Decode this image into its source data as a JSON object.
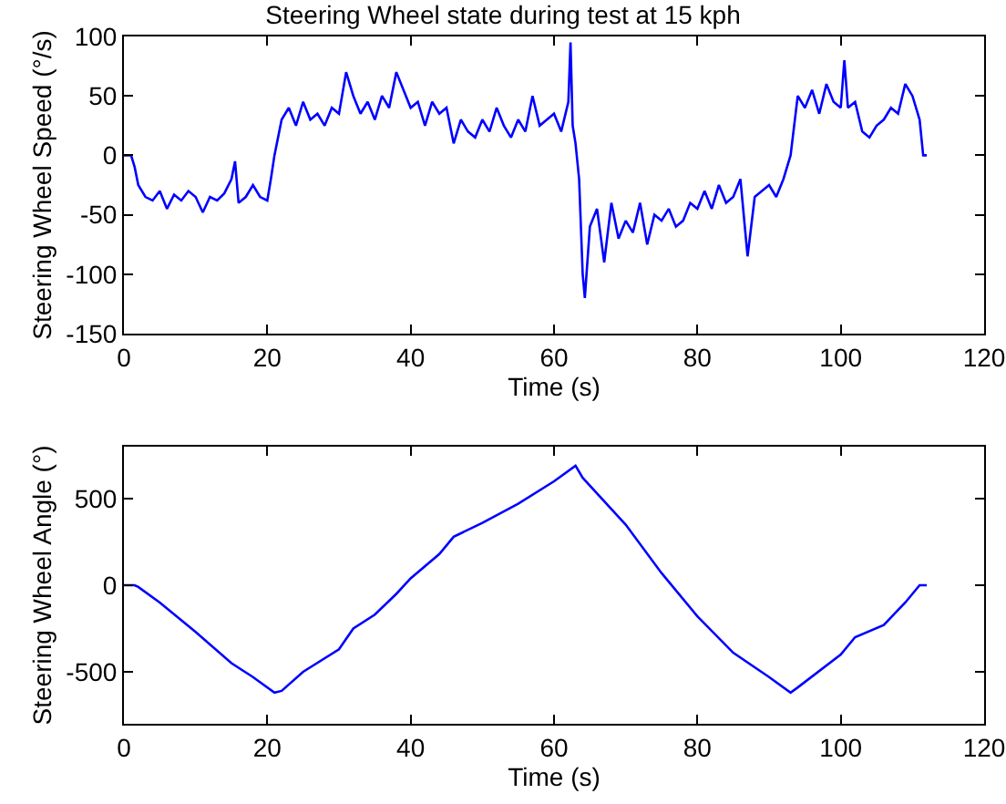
{
  "chart_data": [
    {
      "type": "line",
      "title": "Steering Wheel state during test at 15 kph",
      "xlabel": "Time (s)",
      "ylabel": "Steering Wheel Speed (°/s)",
      "x": [
        0,
        1,
        1.5,
        2,
        3,
        4,
        5,
        6,
        7,
        8,
        9,
        10,
        11,
        12,
        13,
        14,
        15,
        15.5,
        16,
        17,
        18,
        19,
        20,
        20.5,
        21,
        22,
        23,
        24,
        25,
        26,
        27,
        28,
        29,
        30,
        31,
        32,
        33,
        34,
        35,
        36,
        37,
        38,
        39,
        40,
        41,
        42,
        43,
        44,
        45,
        46,
        47,
        48,
        49,
        50,
        51,
        52,
        53,
        54,
        55,
        56,
        57,
        58,
        59,
        60,
        61,
        62,
        62.3,
        62.6,
        63,
        63.5,
        64,
        64.3,
        65,
        66,
        67,
        68,
        69,
        70,
        71,
        72,
        73,
        74,
        75,
        76,
        77,
        78,
        79,
        80,
        81,
        82,
        83,
        84,
        85,
        86,
        87,
        88,
        89,
        90,
        91,
        92,
        93,
        94,
        95,
        96,
        97,
        98,
        99,
        100,
        100.5,
        101,
        102,
        103,
        104,
        105,
        106,
        107,
        108,
        109,
        110,
        111,
        111.5,
        112
      ],
      "series": [
        {
          "color": "#0000ff",
          "values": [
            0,
            0,
            -10,
            -25,
            -35,
            -38,
            -30,
            -45,
            -33,
            -38,
            -30,
            -35,
            -48,
            -35,
            -38,
            -32,
            -20,
            -5,
            -40,
            -35,
            -25,
            -35,
            -38,
            -20,
            0,
            30,
            40,
            25,
            45,
            30,
            35,
            25,
            40,
            35,
            70,
            50,
            35,
            45,
            30,
            50,
            40,
            70,
            55,
            40,
            45,
            25,
            45,
            35,
            40,
            10,
            30,
            20,
            15,
            30,
            20,
            40,
            25,
            15,
            30,
            20,
            50,
            25,
            30,
            35,
            20,
            45,
            95,
            25,
            10,
            -20,
            -100,
            -120,
            -60,
            -45,
            -90,
            -40,
            -70,
            -55,
            -65,
            -40,
            -75,
            -50,
            -55,
            -45,
            -60,
            -55,
            -40,
            -45,
            -30,
            -45,
            -25,
            -40,
            -35,
            -20,
            -85,
            -35,
            -30,
            -25,
            -35,
            -20,
            0,
            50,
            40,
            55,
            35,
            60,
            45,
            40,
            80,
            40,
            45,
            20,
            15,
            25,
            30,
            40,
            35,
            60,
            50,
            30,
            0,
            0
          ]
        }
      ],
      "xlim": [
        0,
        120
      ],
      "xticks": [
        0,
        20,
        40,
        60,
        80,
        100,
        120
      ],
      "ylim": [
        -150,
        100
      ],
      "yticks": [
        -150,
        -100,
        -50,
        0,
        50,
        100
      ],
      "line_style": "solid",
      "marker": "none"
    },
    {
      "type": "line",
      "xlabel": "Time (s)",
      "ylabel": "Steering Wheel Angle (°)",
      "x": [
        0,
        1.5,
        2,
        5,
        10,
        15,
        18,
        21,
        22,
        25,
        30,
        32,
        35,
        38,
        40,
        44,
        46,
        50,
        55,
        60,
        63,
        64,
        70,
        75,
        80,
        85,
        90,
        93,
        94,
        100,
        102,
        106,
        109,
        111,
        112
      ],
      "series": [
        {
          "color": "#0000ff",
          "values": [
            0,
            0,
            -10,
            -100,
            -270,
            -450,
            -530,
            -620,
            -610,
            -500,
            -370,
            -250,
            -170,
            -50,
            40,
            180,
            280,
            360,
            470,
            600,
            690,
            620,
            350,
            70,
            -180,
            -390,
            -530,
            -620,
            -590,
            -400,
            -300,
            -230,
            -100,
            0,
            0
          ]
        }
      ],
      "xlim": [
        0,
        120
      ],
      "xticks": [
        0,
        20,
        40,
        60,
        80,
        100,
        120
      ],
      "ylim": [
        -800,
        800
      ],
      "yticks": [
        -500,
        0,
        500
      ],
      "line_style": "solid",
      "marker": "none"
    }
  ]
}
